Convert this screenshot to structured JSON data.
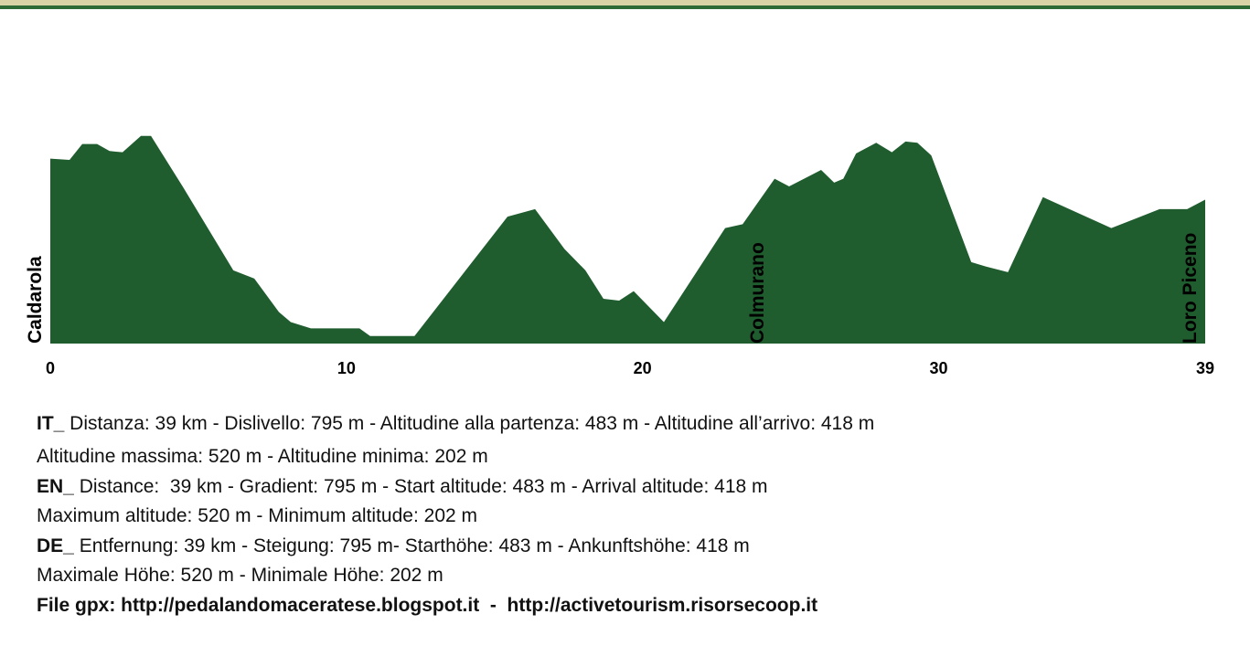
{
  "chart_data": {
    "type": "area",
    "color": "#1f5c2e",
    "x": [
      0,
      0.65,
      1.08,
      1.58,
      2.0,
      2.44,
      3.06,
      3.4,
      4.48,
      6.18,
      6.89,
      7.72,
      8.12,
      8.8,
      10.44,
      10.8,
      12.3,
      15.44,
      16.37,
      17.36,
      18.07,
      18.68,
      19.21,
      19.7,
      20.72,
      22.79,
      23.38,
      24.46,
      24.95,
      26.03,
      26.47,
      26.78,
      27.21,
      27.89,
      28.42,
      28.88,
      29.28,
      29.75,
      31.1,
      31.6,
      32.34,
      33.52,
      35.83,
      36.6,
      37.46,
      38.39,
      39
    ],
    "values": [
      483,
      481,
      506,
      506,
      495,
      493,
      519,
      519,
      438,
      306,
      293,
      240,
      224,
      214,
      214,
      202,
      202,
      391,
      403,
      340,
      306,
      261,
      258,
      273,
      224,
      373,
      379,
      451,
      439,
      465,
      445,
      451,
      491,
      508,
      493,
      510,
      508,
      488,
      319,
      312,
      303,
      422,
      373,
      387,
      403,
      403,
      418
    ],
    "xlim": [
      0,
      39
    ],
    "xticks": [
      0,
      10,
      20,
      30,
      39
    ],
    "ylim": [
      190,
      520
    ],
    "annotations": [
      {
        "text": "Caldarola",
        "x": 0
      },
      {
        "text": "Colmurano",
        "x": 24.4
      },
      {
        "text": "Loro Piceno",
        "x": 39
      }
    ]
  },
  "info": {
    "lines": [
      {
        "lead": "IT_",
        "text": " Distanza: 39 km - Dislivello: 795 m - Altitudine alla partenza: 483 m - Altitudine all’arrivo: 418 m"
      },
      {
        "text": "Altitudine massima: 520 m - Altitudine minima: 202 m"
      },
      {
        "lead": "EN_",
        "text": " Distance:  39 km - Gradient: 795 m - Start altitude: 483 m - Arrival altitude: 418 m"
      },
      {
        "text": "Maximum altitude: 520 m - Minimum altitude: 202 m"
      },
      {
        "lead": "DE_",
        "text": " Entfernung: 39 km - Steigung: 795 m- Starthöhe: 483 m - Ankunftshöhe: 418 m"
      },
      {
        "text": "Maximale Höhe: 520 m - Minimale Höhe: 202 m"
      },
      {
        "lead": "File gpx: http://pedalandomaceratese.blogspot.it  -  http://activetourism.risorsecoop.it"
      }
    ]
  }
}
